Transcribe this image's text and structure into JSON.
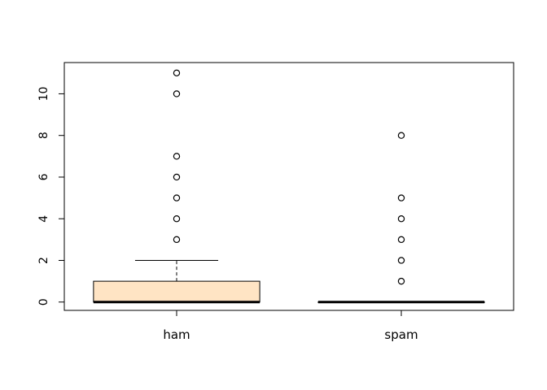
{
  "chart_data": {
    "type": "boxplot",
    "categories": [
      "ham",
      "spam"
    ],
    "title": "",
    "xlabel": "",
    "ylabel": "",
    "ylim": [
      -0.4,
      11.5
    ],
    "yticks": [
      0,
      2,
      4,
      6,
      8,
      10
    ],
    "grid": false,
    "series": [
      {
        "category": "ham",
        "fill": "#ffe4c4",
        "whisker_low": 0,
        "q1": 0,
        "median": 0,
        "q3": 1,
        "whisker_high": 2,
        "outliers": [
          3,
          4,
          5,
          6,
          7,
          10,
          11
        ]
      },
      {
        "category": "spam",
        "fill": "#ffe4c4",
        "whisker_low": 0,
        "q1": 0,
        "median": 0,
        "q3": 0,
        "whisker_high": 0,
        "outliers": [
          1,
          2,
          3,
          4,
          5,
          8
        ]
      }
    ]
  }
}
